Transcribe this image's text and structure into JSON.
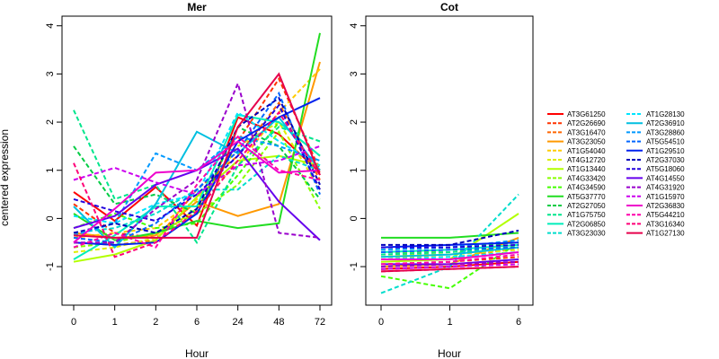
{
  "ylabel": "centered expression",
  "panels": [
    {
      "title": "Mer",
      "xlabel": "Hour"
    },
    {
      "title": "Cot",
      "xlabel": "Hour"
    }
  ],
  "chart_data": [
    {
      "type": "line",
      "title": "Mer",
      "xlabel": "Hour",
      "ylabel": "centered expression",
      "categories": [
        "0",
        "1",
        "2",
        "6",
        "24",
        "48",
        "72"
      ],
      "ylim": [
        -1.8,
        4.2
      ],
      "yticks": [
        -1,
        0,
        1,
        2,
        3,
        4
      ],
      "series": [
        {
          "name": "AT3G61250",
          "color": "#FF0000",
          "style": "solid",
          "values": [
            0.55,
            -0.05,
            0.65,
            -0.15,
            2.1,
            1.75,
            0.95
          ]
        },
        {
          "name": "AT2G26690",
          "color": "#FF3300",
          "style": "dashed",
          "values": [
            0.3,
            -0.3,
            -0.4,
            0.2,
            1.6,
            2.9,
            1.0
          ]
        },
        {
          "name": "AT3G16470",
          "color": "#FF6600",
          "style": "dashed",
          "values": [
            -0.5,
            -0.55,
            -0.45,
            0.6,
            1.3,
            2.4,
            0.8
          ]
        },
        {
          "name": "AT3G23050",
          "color": "#FF9900",
          "style": "solid",
          "values": [
            -0.3,
            -0.4,
            -0.35,
            0.35,
            0.05,
            0.3,
            3.25
          ]
        },
        {
          "name": "AT1G54040",
          "color": "#FFCC00",
          "style": "dashed",
          "values": [
            -0.4,
            -0.3,
            -0.2,
            0.4,
            1.1,
            2.2,
            3.1
          ]
        },
        {
          "name": "AT4G12720",
          "color": "#DDEE00",
          "style": "dashed",
          "values": [
            -0.7,
            -0.6,
            -0.4,
            0.2,
            1.5,
            2.0,
            0.6
          ]
        },
        {
          "name": "AT1G13440",
          "color": "#B2FF00",
          "style": "solid",
          "values": [
            -0.9,
            -0.75,
            -0.45,
            0.45,
            1.2,
            1.3,
            1.1
          ]
        },
        {
          "name": "AT4G33420",
          "color": "#88FF00",
          "style": "dashed",
          "values": [
            -0.6,
            -0.5,
            -0.3,
            0.1,
            0.7,
            1.8,
            0.2
          ]
        },
        {
          "name": "AT4G34590",
          "color": "#44FF00",
          "style": "dashed",
          "values": [
            -0.2,
            0.1,
            -0.2,
            -0.1,
            0.9,
            2.0,
            1.3
          ]
        },
        {
          "name": "AT5G37770",
          "color": "#22DD22",
          "style": "solid",
          "values": [
            0.1,
            -0.45,
            -0.3,
            -0.05,
            -0.2,
            -0.1,
            3.85
          ]
        },
        {
          "name": "AT2G27050",
          "color": "#00CC44",
          "style": "dashed",
          "values": [
            1.5,
            0.3,
            0.5,
            0.1,
            1.9,
            1.5,
            0.4
          ]
        },
        {
          "name": "AT1G75750",
          "color": "#00E58C",
          "style": "dashed",
          "values": [
            2.25,
            0.4,
            0.7,
            -0.5,
            1.1,
            1.9,
            1.6
          ]
        },
        {
          "name": "AT2G06850",
          "color": "#00EEBB",
          "style": "solid",
          "values": [
            -0.85,
            -0.35,
            0.25,
            0.25,
            2.15,
            2.0,
            1.3
          ]
        },
        {
          "name": "AT3G23030",
          "color": "#00DDCC",
          "style": "dashed",
          "values": [
            -0.3,
            -0.2,
            0.1,
            0.6,
            0.6,
            1.3,
            1.0
          ]
        },
        {
          "name": "AT1G28130",
          "color": "#00E5FF",
          "style": "dashed",
          "values": [
            0.05,
            -0.1,
            0.3,
            0.5,
            2.2,
            1.6,
            1.1
          ]
        },
        {
          "name": "AT2G36910",
          "color": "#00BFE0",
          "style": "solid",
          "values": [
            0.25,
            -0.6,
            0.3,
            1.8,
            1.35,
            2.1,
            1.0
          ]
        },
        {
          "name": "AT3G28860",
          "color": "#0099FF",
          "style": "dashed",
          "values": [
            -0.35,
            -0.1,
            1.35,
            1.0,
            1.7,
            1.5,
            1.2
          ]
        },
        {
          "name": "AT5G54510",
          "color": "#0066FF",
          "style": "dashed",
          "values": [
            -0.4,
            -0.5,
            -0.1,
            0.6,
            1.4,
            2.6,
            0.5
          ]
        },
        {
          "name": "AT1G29510",
          "color": "#0022EE",
          "style": "solid",
          "values": [
            -0.5,
            -0.55,
            -0.5,
            0.1,
            1.6,
            2.1,
            2.5
          ]
        },
        {
          "name": "AT2G37030",
          "color": "#0000BB",
          "style": "dashed",
          "values": [
            -0.3,
            -0.1,
            -0.3,
            0.2,
            1.9,
            2.5,
            0.7
          ]
        },
        {
          "name": "AT5G18060",
          "color": "#2200DD",
          "style": "dashed",
          "values": [
            0.4,
            0.15,
            -0.05,
            0.5,
            1.3,
            2.35,
            0.6
          ]
        },
        {
          "name": "AT4G14550",
          "color": "#6600EE",
          "style": "solid",
          "values": [
            -0.2,
            0.05,
            0.7,
            1.0,
            1.45,
            0.35,
            -0.45
          ]
        },
        {
          "name": "AT4G31920",
          "color": "#9900CC",
          "style": "dashed",
          "values": [
            -0.5,
            -0.5,
            0.2,
            0.8,
            2.8,
            -0.3,
            -0.4
          ]
        },
        {
          "name": "AT1G15970",
          "color": "#CC00EE",
          "style": "dashed",
          "values": [
            0.8,
            1.05,
            0.75,
            0.5,
            1.1,
            1.2,
            1.5
          ]
        },
        {
          "name": "AT2G36830",
          "color": "#EE00CC",
          "style": "solid",
          "values": [
            -0.5,
            0.2,
            0.95,
            1.0,
            1.6,
            0.95,
            1.0
          ]
        },
        {
          "name": "AT5G44210",
          "color": "#FF00AA",
          "style": "dashed",
          "values": [
            -0.6,
            -0.3,
            -0.6,
            0.7,
            1.7,
            1.0,
            0.8
          ]
        },
        {
          "name": "AT3G16340",
          "color": "#FF0077",
          "style": "dashed",
          "values": [
            1.15,
            -0.8,
            -0.5,
            0.15,
            1.2,
            2.2,
            0.9
          ]
        },
        {
          "name": "AT1G27130",
          "color": "#E6004C",
          "style": "solid",
          "values": [
            -0.35,
            -0.4,
            -0.4,
            -0.4,
            1.9,
            3.0,
            0.9
          ]
        }
      ]
    },
    {
      "type": "line",
      "title": "Cot",
      "xlabel": "Hour",
      "ylabel": "centered expression",
      "categories": [
        "0",
        "1",
        "6"
      ],
      "ylim": [
        -1.8,
        4.2
      ],
      "yticks": [
        -1,
        0,
        1,
        2,
        3,
        4
      ],
      "series": [
        {
          "name": "AT3G61250",
          "values": [
            -1.05,
            -1.0,
            -0.9
          ]
        },
        {
          "name": "AT2G26690",
          "values": [
            -0.95,
            -0.9,
            -0.8
          ]
        },
        {
          "name": "AT3G16470",
          "values": [
            -0.85,
            -0.85,
            -0.6
          ]
        },
        {
          "name": "AT3G23050",
          "values": [
            -1.0,
            -0.95,
            -0.4
          ]
        },
        {
          "name": "AT1G54040",
          "values": [
            -0.8,
            -0.8,
            -0.7
          ]
        },
        {
          "name": "AT4G12720",
          "values": [
            -0.75,
            -0.75,
            -0.65
          ]
        },
        {
          "name": "AT1G13440",
          "values": [
            -0.9,
            -0.85,
            0.1
          ]
        },
        {
          "name": "AT4G33420",
          "values": [
            -0.7,
            -0.7,
            -0.55
          ]
        },
        {
          "name": "AT4G34590",
          "values": [
            -1.2,
            -1.45,
            -0.5
          ]
        },
        {
          "name": "AT5G37770",
          "values": [
            -0.4,
            -0.4,
            -0.3
          ]
        },
        {
          "name": "AT2G27050",
          "values": [
            -0.65,
            -0.6,
            -0.5
          ]
        },
        {
          "name": "AT1G75750",
          "values": [
            -0.75,
            -0.7,
            -0.6
          ]
        },
        {
          "name": "AT2G06850",
          "values": [
            -0.7,
            -0.65,
            -0.55
          ]
        },
        {
          "name": "AT3G23030",
          "values": [
            -1.55,
            -1.0,
            0.5
          ]
        },
        {
          "name": "AT1G28130",
          "values": [
            -0.85,
            -0.8,
            -0.7
          ]
        },
        {
          "name": "AT2G36910",
          "values": [
            -0.8,
            -0.75,
            -0.6
          ]
        },
        {
          "name": "AT3G28860",
          "values": [
            -0.65,
            -0.6,
            -0.45
          ]
        },
        {
          "name": "AT5G54510",
          "values": [
            -0.7,
            -0.65,
            -0.6
          ]
        },
        {
          "name": "AT1G29510",
          "values": [
            -0.6,
            -0.55,
            -0.5
          ]
        },
        {
          "name": "AT2G37030",
          "values": [
            -0.55,
            -0.55,
            -0.25
          ]
        },
        {
          "name": "AT5G18060",
          "values": [
            -0.6,
            -0.6,
            -0.55
          ]
        },
        {
          "name": "AT4G14550",
          "values": [
            -0.95,
            -0.95,
            -0.85
          ]
        },
        {
          "name": "AT4G31920",
          "values": [
            -1.0,
            -0.95,
            -0.9
          ]
        },
        {
          "name": "AT1G15970",
          "values": [
            -1.05,
            -1.0,
            -0.95
          ]
        },
        {
          "name": "AT2G36830",
          "values": [
            -0.85,
            -0.85,
            -0.7
          ]
        },
        {
          "name": "AT5G44210",
          "values": [
            -0.95,
            -0.9,
            -0.75
          ]
        },
        {
          "name": "AT3G16340",
          "values": [
            -1.1,
            -1.05,
            -1.0
          ]
        },
        {
          "name": "AT1G27130",
          "values": [
            -1.1,
            -1.05,
            -1.0
          ]
        }
      ]
    }
  ]
}
